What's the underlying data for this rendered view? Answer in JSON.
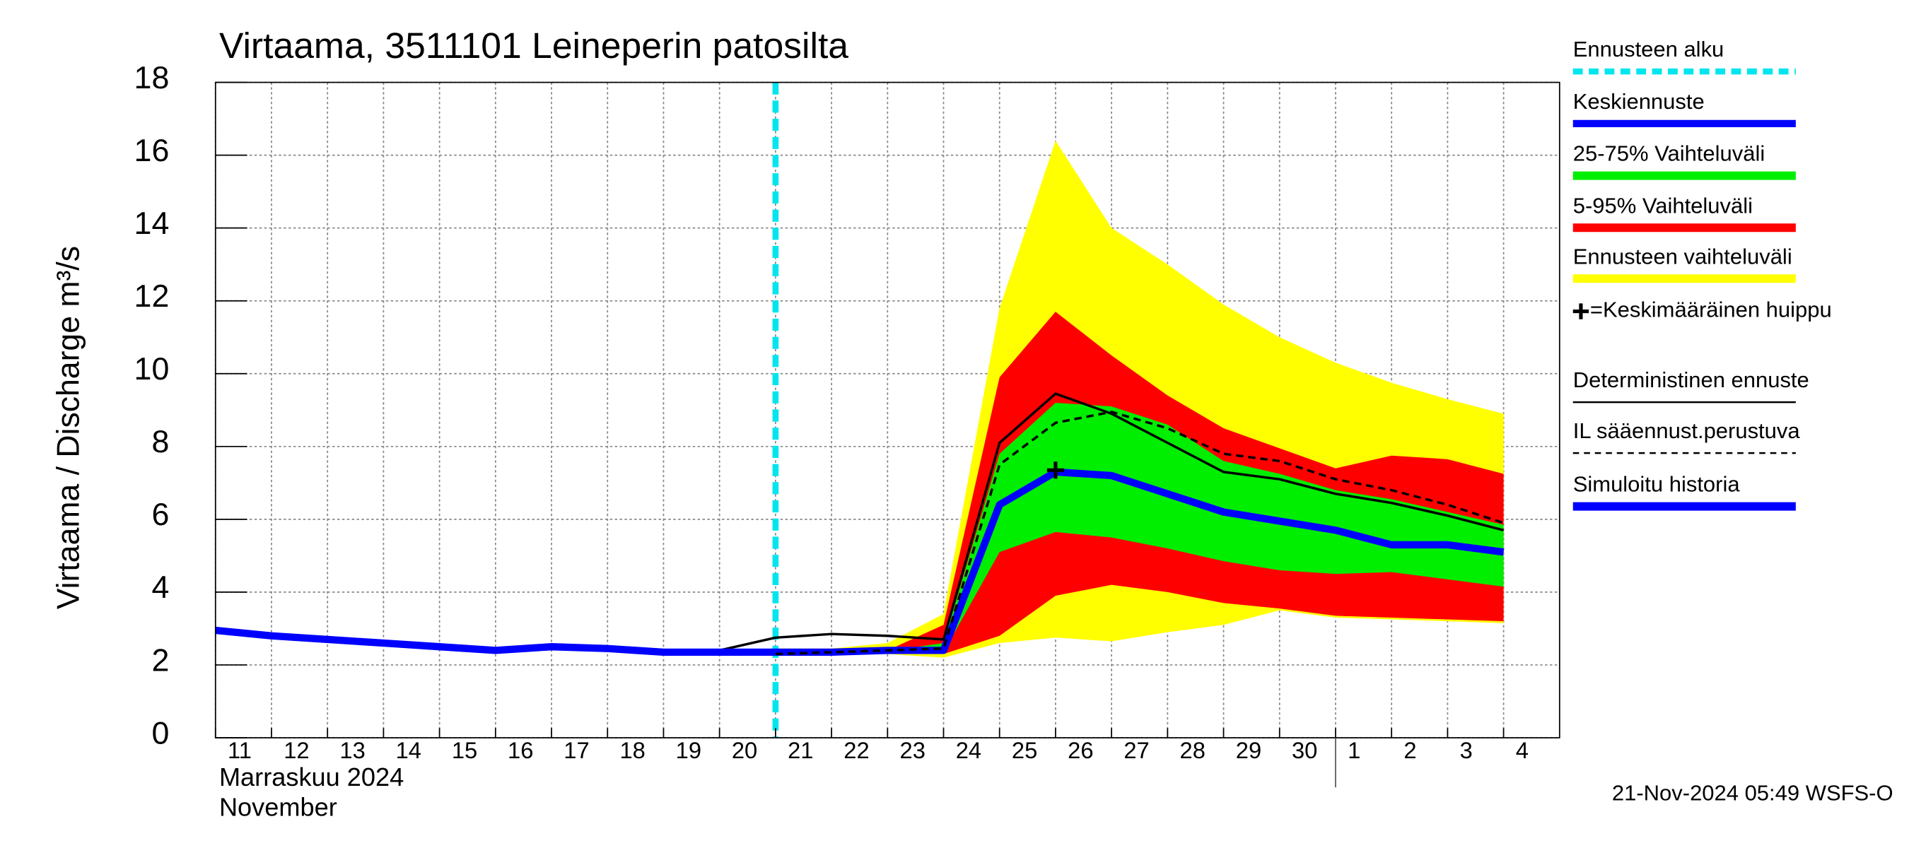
{
  "chart_data": {
    "type": "band-line",
    "title": "Virtaama, 3511101 Leineperin patosilta",
    "y_label": "Virtaama / Discharge    m³/s",
    "x_label_fi": "Marraskuu 2024",
    "x_label_en": "November",
    "timestamp": "21-Nov-2024 05:49 WSFS-O",
    "categories": [
      "11",
      "12",
      "13",
      "14",
      "15",
      "16",
      "17",
      "18",
      "19",
      "20",
      "21",
      "22",
      "23",
      "24",
      "25",
      "26",
      "27",
      "28",
      "29",
      "30",
      "1",
      "2",
      "3",
      "4"
    ],
    "ylim": [
      0,
      18
    ],
    "yticks": [
      0,
      2,
      4,
      6,
      8,
      10,
      12,
      14,
      16,
      18
    ],
    "grid": true,
    "forecast_start": {
      "name": "Ennusteen alku",
      "color": "#00e5ee",
      "index": 10
    },
    "bands": [
      {
        "name": "Ennusteen vaihteluväli",
        "color": "#ffff00",
        "low": [
          null,
          null,
          null,
          null,
          null,
          null,
          null,
          null,
          null,
          null,
          2.3,
          2.3,
          2.3,
          2.2,
          2.6,
          2.75,
          2.65,
          2.9,
          3.1,
          3.5,
          3.3,
          3.25,
          3.2,
          3.15
        ],
        "high": [
          null,
          null,
          null,
          null,
          null,
          null,
          null,
          null,
          null,
          null,
          2.45,
          2.45,
          2.6,
          3.4,
          11.8,
          16.4,
          14.0,
          13.0,
          11.9,
          11.0,
          10.3,
          9.75,
          9.3,
          8.9
        ]
      },
      {
        "name": "5-95% Vaihteluväli",
        "color": "#ff0000",
        "low": [
          null,
          null,
          null,
          null,
          null,
          null,
          null,
          null,
          null,
          null,
          2.3,
          2.3,
          2.3,
          2.3,
          2.8,
          3.9,
          4.2,
          4.0,
          3.7,
          3.55,
          3.35,
          3.3,
          3.25,
          3.2
        ],
        "high": [
          null,
          null,
          null,
          null,
          null,
          null,
          null,
          null,
          null,
          null,
          2.4,
          2.4,
          2.4,
          3.1,
          9.9,
          11.7,
          10.5,
          9.4,
          8.5,
          7.95,
          7.4,
          7.75,
          7.65,
          7.25
        ]
      },
      {
        "name": "25-75% Vaihteluväli",
        "color": "#00ee00",
        "low": [
          null,
          null,
          null,
          null,
          null,
          null,
          null,
          null,
          null,
          null,
          2.33,
          2.33,
          2.33,
          2.35,
          5.1,
          5.65,
          5.5,
          5.2,
          4.85,
          4.6,
          4.5,
          4.55,
          4.35,
          4.15
        ],
        "high": [
          null,
          null,
          null,
          null,
          null,
          null,
          null,
          null,
          null,
          null,
          2.38,
          2.38,
          2.38,
          2.6,
          7.8,
          9.2,
          9.1,
          8.6,
          7.6,
          7.25,
          6.8,
          6.55,
          6.2,
          5.85
        ]
      }
    ],
    "series": [
      {
        "name": "Keskiennuste",
        "color": "#0000ff",
        "width": 6,
        "values": [
          null,
          null,
          null,
          null,
          null,
          null,
          null,
          null,
          null,
          null,
          2.35,
          2.35,
          2.4,
          2.4,
          6.4,
          7.3,
          7.2,
          6.7,
          6.2,
          5.95,
          5.7,
          5.3,
          5.3,
          5.1
        ]
      },
      {
        "name": "Deterministinen ennuste",
        "color": "#000000",
        "width": 2,
        "values": [
          null,
          null,
          null,
          null,
          null,
          null,
          null,
          null,
          null,
          2.4,
          2.75,
          2.85,
          2.8,
          2.7,
          8.1,
          9.45,
          8.9,
          8.1,
          7.3,
          7.1,
          6.7,
          6.45,
          6.1,
          5.7
        ]
      },
      {
        "name": "IL sääennust.perustuva",
        "color": "#000000",
        "width": 2,
        "style": "dashed",
        "values": [
          null,
          null,
          null,
          null,
          null,
          null,
          null,
          null,
          null,
          null,
          2.3,
          2.35,
          2.4,
          2.45,
          7.5,
          8.65,
          8.95,
          8.5,
          7.8,
          7.6,
          7.1,
          6.8,
          6.4,
          5.9
        ]
      },
      {
        "name": "Simuloitu historia",
        "color": "#0000ff",
        "width": 6,
        "values": [
          2.95,
          2.8,
          2.7,
          2.6,
          2.5,
          2.4,
          2.5,
          2.45,
          2.35,
          2.35,
          2.35,
          null,
          null,
          null,
          null,
          null,
          null,
          null,
          null,
          null,
          null,
          null,
          null,
          null
        ]
      }
    ],
    "peak": {
      "name": "=Keskimääräinen huippu",
      "index": 15,
      "value": 7.35
    }
  }
}
